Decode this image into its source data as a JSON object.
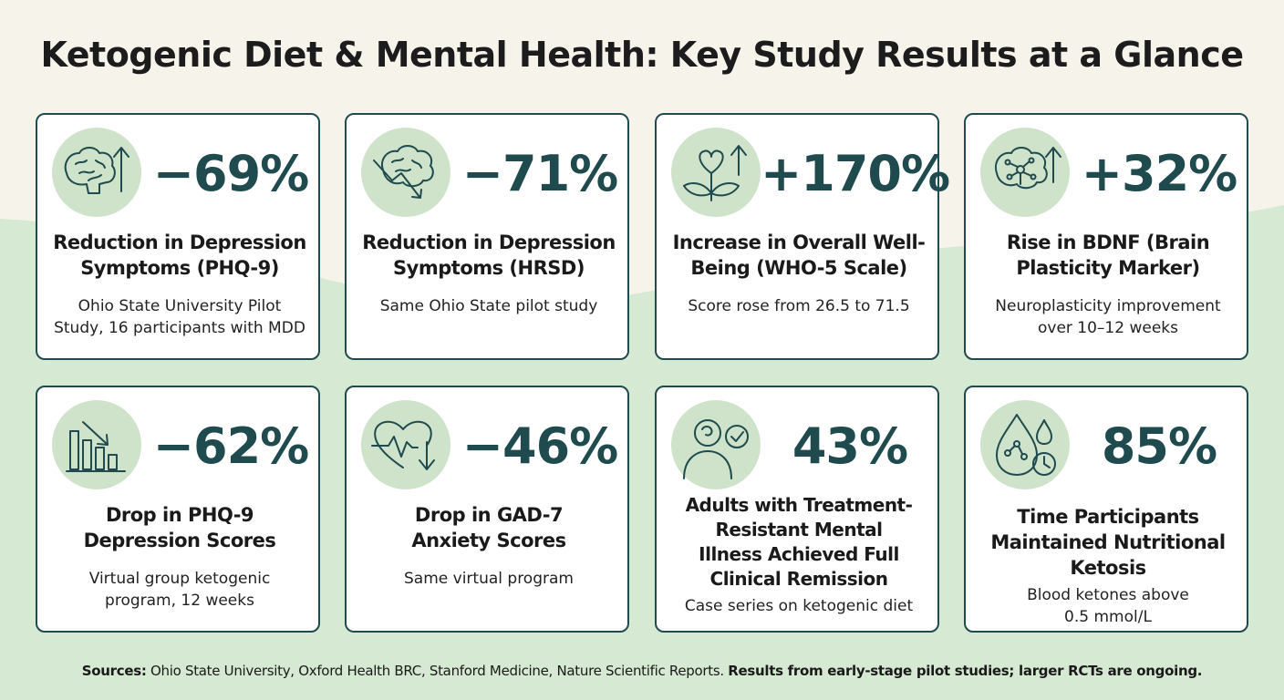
{
  "title": "Ketogenic Diet & Mental Health: Key Study Results at a Glance",
  "colors": {
    "accent": "#1f4a4e",
    "icon_bg": "#cfe3cb",
    "bg_top": "#f6f3ea",
    "bg_bottom": "#d6e9d2"
  },
  "cards": [
    {
      "icon": "brain-arrow-up-icon",
      "stat": "−69%",
      "label": "Reduction in Depression Symptoms (PHQ-9)",
      "label_lines": [
        "Reduction in Depression",
        "Symptoms (PHQ-9)"
      ],
      "sub_lines": [
        "Ohio State University Pilot",
        "Study, 16 participants with MDD"
      ]
    },
    {
      "icon": "brain-arrow-down-icon",
      "stat": "−71%",
      "label_lines": [
        "Reduction in Depression",
        "Symptoms (HRSD)"
      ],
      "sub_lines": [
        "Same Ohio State pilot study"
      ]
    },
    {
      "icon": "heart-plant-arrow-up-icon",
      "stat": "+170%",
      "label_lines": [
        "Increase in Overall Well-",
        "Being (WHO-5 Scale)"
      ],
      "sub_lines": [
        "Score rose from 26.5 to 71.5"
      ]
    },
    {
      "icon": "neural-brain-arrow-up-icon",
      "stat": "+32%",
      "label_lines": [
        "Rise in BDNF (Brain",
        "Plasticity Marker)"
      ],
      "sub_lines": [
        "Neuroplasticity improvement",
        "over 10–12 weeks"
      ]
    },
    {
      "icon": "bar-chart-down-icon",
      "stat": "−62%",
      "label_lines": [
        "Drop in PHQ-9",
        "Depression Scores"
      ],
      "sub_lines": [
        "Virtual group ketogenic",
        "program, 12 weeks"
      ]
    },
    {
      "icon": "heart-pulse-down-icon",
      "stat": "−46%",
      "label_lines": [
        "Drop in GAD-7",
        "Anxiety Scores"
      ],
      "sub_lines": [
        "Same virtual program"
      ]
    },
    {
      "icon": "person-check-icon",
      "stat": "43%",
      "label_lines": [
        "Adults with Treatment-",
        "Resistant Mental",
        "Illness Achieved Full",
        "Clinical Remission"
      ],
      "sub_lines": [
        "Case series on ketogenic diet"
      ]
    },
    {
      "icon": "ketone-drop-clock-icon",
      "stat": "85%",
      "label_lines": [
        "Time Participants",
        "Maintained Nutritional",
        "Ketosis"
      ],
      "sub_lines": [
        "Blood ketones above",
        "0.5 mmol/L"
      ]
    }
  ],
  "footer": {
    "sources_label": "Sources:",
    "sources_text": " Ohio State University, Oxford Health BRC, Stanford Medicine, Nature Scientific Reports. ",
    "note": "Results from early-stage pilot studies; larger RCTs are ongoing."
  }
}
